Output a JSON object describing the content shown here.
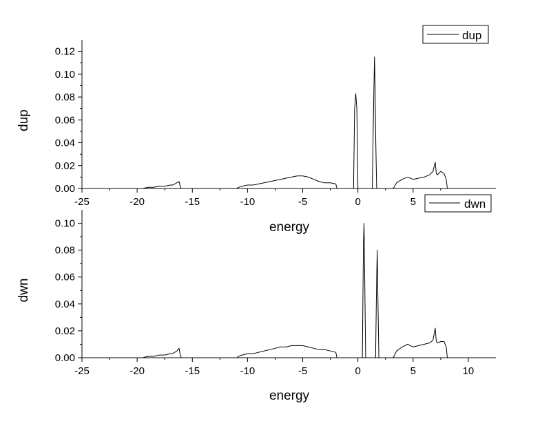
{
  "chart_data": [
    {
      "type": "line",
      "xlabel": "energy",
      "ylabel": "dup",
      "xlim": [
        -25,
        12.5
      ],
      "ylim": [
        0,
        0.13
      ],
      "x_ticks": [
        -25,
        -20,
        -15,
        -10,
        -5,
        0,
        5
      ],
      "x_tick_labels": [
        "-25",
        "-20",
        "-15",
        "-10",
        "-5",
        "0",
        "5"
      ],
      "y_ticks": [
        0,
        0.02,
        0.04,
        0.06,
        0.08,
        0.1,
        0.12
      ],
      "y_tick_labels": [
        "0.00",
        "0.02",
        "0.04",
        "0.06",
        "0.08",
        "0.10",
        "0.12"
      ],
      "legend": "top-right",
      "series": [
        {
          "name": "dup",
          "x": [
            -25,
            -19.5,
            -19,
            -18.5,
            -18,
            -17.5,
            -17,
            -16.8,
            -16.6,
            -16.4,
            -16.2,
            -16.1,
            -16.0,
            -11.0,
            -10.8,
            -10.5,
            -10,
            -9.5,
            -9,
            -8.5,
            -8,
            -7.5,
            -7,
            -6.5,
            -6,
            -5.5,
            -5,
            -4.5,
            -4,
            -3.5,
            -3,
            -2.5,
            -2,
            -1.9,
            -0.4,
            -0.3,
            -0.2,
            -0.1,
            0.0,
            1.3,
            1.4,
            1.5,
            1.55,
            1.6,
            1.7,
            3.2,
            3.5,
            4,
            4.5,
            5,
            5.5,
            6,
            6.5,
            6.8,
            7.0,
            7.1,
            7.2,
            7.5,
            7.8,
            8.0,
            8.1,
            12.5
          ],
          "y": [
            0,
            0,
            0.001,
            0.001,
            0.002,
            0.002,
            0.003,
            0.003,
            0.004,
            0.005,
            0.006,
            0.002,
            0,
            0,
            0.001,
            0.002,
            0.003,
            0.003,
            0.004,
            0.005,
            0.006,
            0.007,
            0.008,
            0.009,
            0.01,
            0.011,
            0.011,
            0.01,
            0.008,
            0.006,
            0.005,
            0.005,
            0.004,
            0,
            0,
            0.07,
            0.083,
            0.07,
            0,
            0,
            0.06,
            0.115,
            0.092,
            0.05,
            0,
            0,
            0.005,
            0.008,
            0.01,
            0.008,
            0.009,
            0.01,
            0.012,
            0.015,
            0.023,
            0.013,
            0.012,
            0.015,
            0.013,
            0.008,
            0,
            0
          ]
        }
      ]
    },
    {
      "type": "line",
      "xlabel": "energy",
      "ylabel": "dwn",
      "xlim": [
        -25,
        12.5
      ],
      "ylim": [
        0,
        0.11
      ],
      "x_ticks": [
        -25,
        -20,
        -15,
        -10,
        -5,
        0,
        5,
        10
      ],
      "x_tick_labels": [
        "-25",
        "-20",
        "-15",
        "-10",
        "-5",
        "0",
        "5",
        "10"
      ],
      "y_ticks": [
        0,
        0.02,
        0.04,
        0.06,
        0.08,
        0.1
      ],
      "y_tick_labels": [
        "0.00",
        "0.02",
        "0.04",
        "0.06",
        "0.08",
        "0.10"
      ],
      "legend": "top-right",
      "series": [
        {
          "name": "dwn",
          "x": [
            -25,
            -19.5,
            -19,
            -18.5,
            -18,
            -17.5,
            -17,
            -16.8,
            -16.6,
            -16.4,
            -16.2,
            -16.1,
            -16.0,
            -11.0,
            -10.8,
            -10.5,
            -10,
            -9.5,
            -9,
            -8.5,
            -8,
            -7.5,
            -7,
            -6.5,
            -6,
            -5.5,
            -5,
            -4.5,
            -4,
            -3.5,
            -3,
            -2.5,
            -2,
            -1.9,
            0.4,
            0.5,
            0.55,
            0.6,
            0.7,
            1.6,
            1.7,
            1.75,
            1.8,
            1.9,
            3.2,
            3.5,
            4,
            4.5,
            5,
            5.5,
            6,
            6.5,
            6.8,
            7.0,
            7.1,
            7.2,
            7.5,
            7.8,
            8.0,
            8.1,
            12.5
          ],
          "y": [
            0,
            0,
            0.001,
            0.001,
            0.002,
            0.002,
            0.003,
            0.003,
            0.004,
            0.005,
            0.007,
            0.002,
            0,
            0,
            0.001,
            0.002,
            0.003,
            0.003,
            0.004,
            0.005,
            0.006,
            0.007,
            0.008,
            0.008,
            0.009,
            0.009,
            0.009,
            0.008,
            0.007,
            0.006,
            0.006,
            0.005,
            0.004,
            0,
            0,
            0.085,
            0.1,
            0.07,
            0,
            0,
            0.06,
            0.08,
            0.05,
            0,
            0,
            0.005,
            0.008,
            0.01,
            0.008,
            0.009,
            0.01,
            0.011,
            0.013,
            0.022,
            0.012,
            0.011,
            0.012,
            0.012,
            0.008,
            0,
            0
          ]
        }
      ]
    }
  ]
}
